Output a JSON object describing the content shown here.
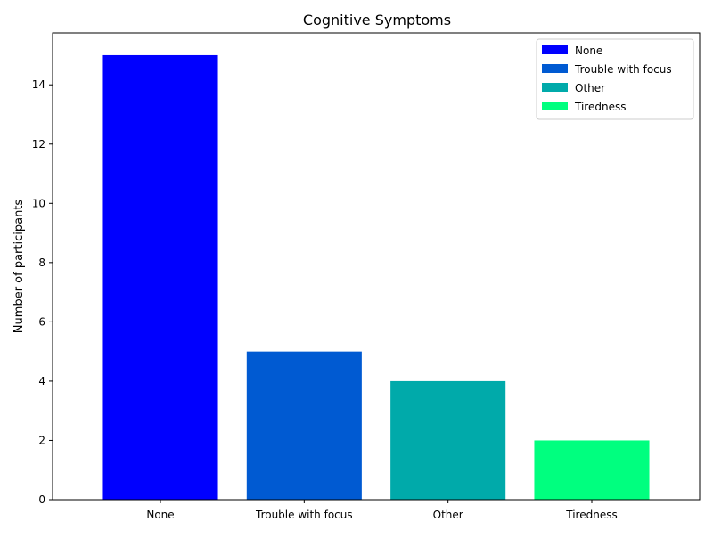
{
  "chart_data": {
    "type": "bar",
    "title": "Cognitive Symptoms",
    "xlabel": "",
    "ylabel": "Number of participants",
    "categories": [
      "None",
      "Trouble with focus",
      "Other",
      "Tiredness"
    ],
    "values": [
      15,
      5,
      4,
      2
    ],
    "colors": [
      "#0000ff",
      "#005ad2",
      "#00aaaa",
      "#00ff7f"
    ],
    "ylim": [
      0,
      15.75
    ],
    "yticks": [
      0,
      2,
      4,
      6,
      8,
      10,
      12,
      14
    ],
    "grid": false,
    "legend": {
      "placement": "top-right",
      "entries": [
        "None",
        "Trouble with focus",
        "Other",
        "Tiredness"
      ]
    }
  }
}
